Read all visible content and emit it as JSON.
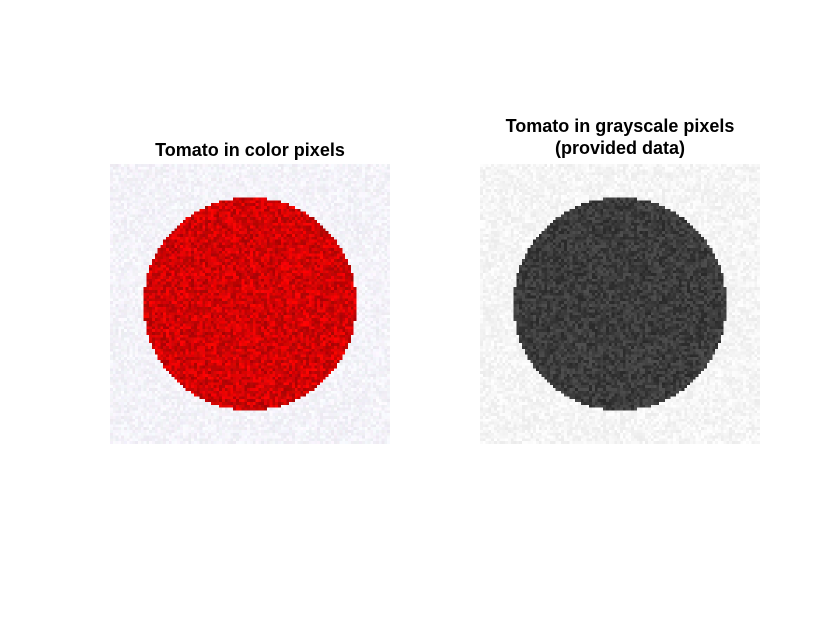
{
  "figure": {
    "left_panel": {
      "title": "Tomato in color pixels",
      "object_color": "#ff0000",
      "background_color": "#f4f4f6"
    },
    "right_panel": {
      "title_line1": "Tomato in grayscale pixels",
      "title_line2": "(provided data)",
      "object_color": "#505050",
      "background_color": "#f2f2f2"
    }
  }
}
